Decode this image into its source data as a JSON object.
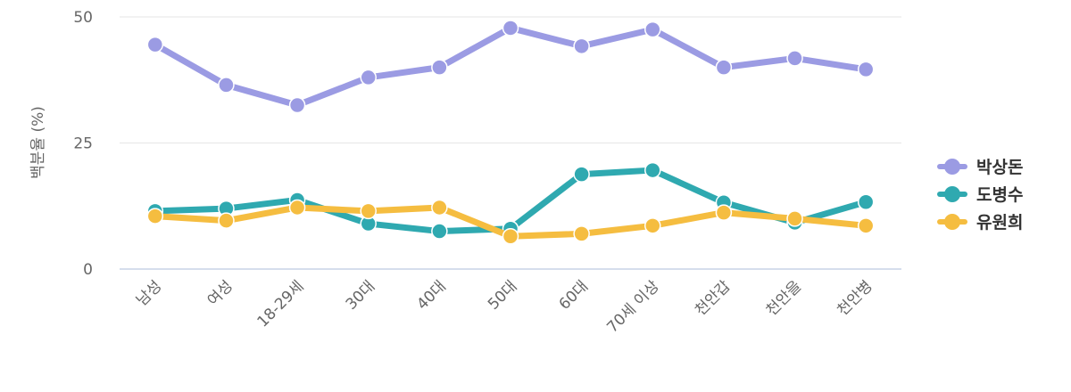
{
  "chart_data": {
    "type": "line",
    "ylabel": "백분율 (%)",
    "ylim": [
      0,
      50
    ],
    "yticks": [
      0,
      25,
      50
    ],
    "grid": true,
    "legend_position": "right",
    "categories": [
      "남성",
      "여성",
      "18-29세",
      "30대",
      "40대",
      "50대",
      "60대",
      "70세 이상",
      "천안갑",
      "천안을",
      "천안병"
    ],
    "series": [
      {
        "name": "박상돈",
        "color": "#9b9be3",
        "values": [
          44.5,
          36.5,
          32.5,
          38.0,
          40.0,
          47.8,
          44.2,
          47.5,
          40.0,
          41.8,
          39.6
        ]
      },
      {
        "name": "도병수",
        "color": "#2fa9b0",
        "values": [
          11.5,
          12.0,
          13.7,
          9.0,
          7.5,
          8.0,
          18.8,
          19.6,
          13.2,
          9.2,
          13.3
        ]
      },
      {
        "name": "유원희",
        "color": "#f5bd40",
        "values": [
          10.5,
          9.6,
          12.2,
          11.5,
          12.2,
          6.5,
          7.0,
          8.6,
          11.2,
          10.0,
          8.6
        ]
      }
    ]
  }
}
